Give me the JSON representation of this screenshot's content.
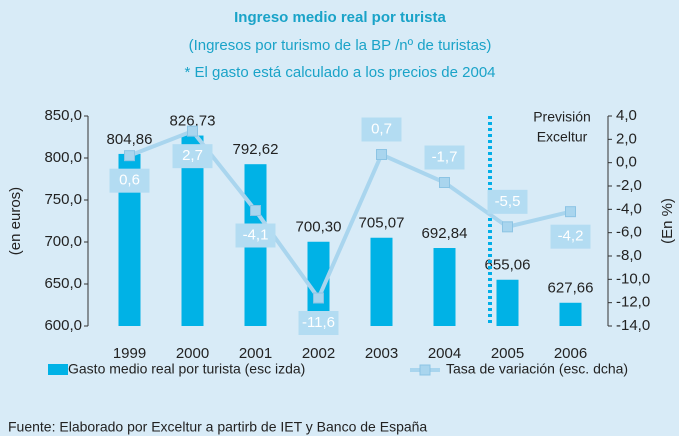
{
  "chart_data": {
    "type": "bar",
    "title": "Ingreso medio real por turista",
    "subtitle": "(Ingresos por turismo de la BP /nº de turistas)",
    "note": "* El gasto está calculado a los precios de   2004",
    "annotation": [
      "Previsión",
      "Exceltur"
    ],
    "ylabel": "(en euros)",
    "y2label": "(En %)",
    "categories": [
      "1999",
      "2000",
      "2001",
      "2002",
      "2003",
      "2004",
      "2005",
      "2006"
    ],
    "series": [
      {
        "name": "Gasto medio real por turista (esc izda)",
        "color": "#00b2e6",
        "values": [
          804.86,
          826.73,
          792.62,
          700.3,
          705.07,
          692.84,
          655.06,
          627.66
        ],
        "value_labels": [
          "804,86",
          "826,73",
          "792,62",
          "700,30",
          "705,07",
          "692,84",
          "655,06",
          "627,66"
        ]
      },
      {
        "name": "Tasa de variación  (esc. dcha)",
        "color": "#a9d5ee",
        "type": "line",
        "axis": "y2",
        "values": [
          0.6,
          2.7,
          -4.1,
          -11.6,
          0.7,
          -1.7,
          -5.5,
          -4.2
        ],
        "value_labels": [
          "0,6",
          "2,7",
          "-4,1",
          "-11,6",
          "0,7",
          "-1,7",
          "-5,5",
          "-4,2"
        ]
      }
    ],
    "ylim": [
      600,
      850
    ],
    "yticks": [
      {
        "value": 600,
        "label": "600,0"
      },
      {
        "value": 650,
        "label": "650,0"
      },
      {
        "value": 700,
        "label": "700,0"
      },
      {
        "value": 750,
        "label": "750,0"
      },
      {
        "value": 800,
        "label": "800,0"
      },
      {
        "value": 850,
        "label": "850,0"
      }
    ],
    "y2lim": [
      -14,
      4
    ],
    "y2ticks": [
      {
        "value": -14,
        "label": "-14,0"
      },
      {
        "value": -12,
        "label": "-12,0"
      },
      {
        "value": -10,
        "label": "-10,0"
      },
      {
        "value": -8,
        "label": "-8,0"
      },
      {
        "value": -6,
        "label": "-6,0"
      },
      {
        "value": -4,
        "label": "-4,0"
      },
      {
        "value": -2,
        "label": "-2,0"
      },
      {
        "value": 0,
        "label": "0,0"
      },
      {
        "value": 2,
        "label": "2,0"
      },
      {
        "value": 4,
        "label": "4,0"
      }
    ],
    "source": "Fuente: Elaborado por Exceltur a partirb de IET y Banco de España"
  }
}
